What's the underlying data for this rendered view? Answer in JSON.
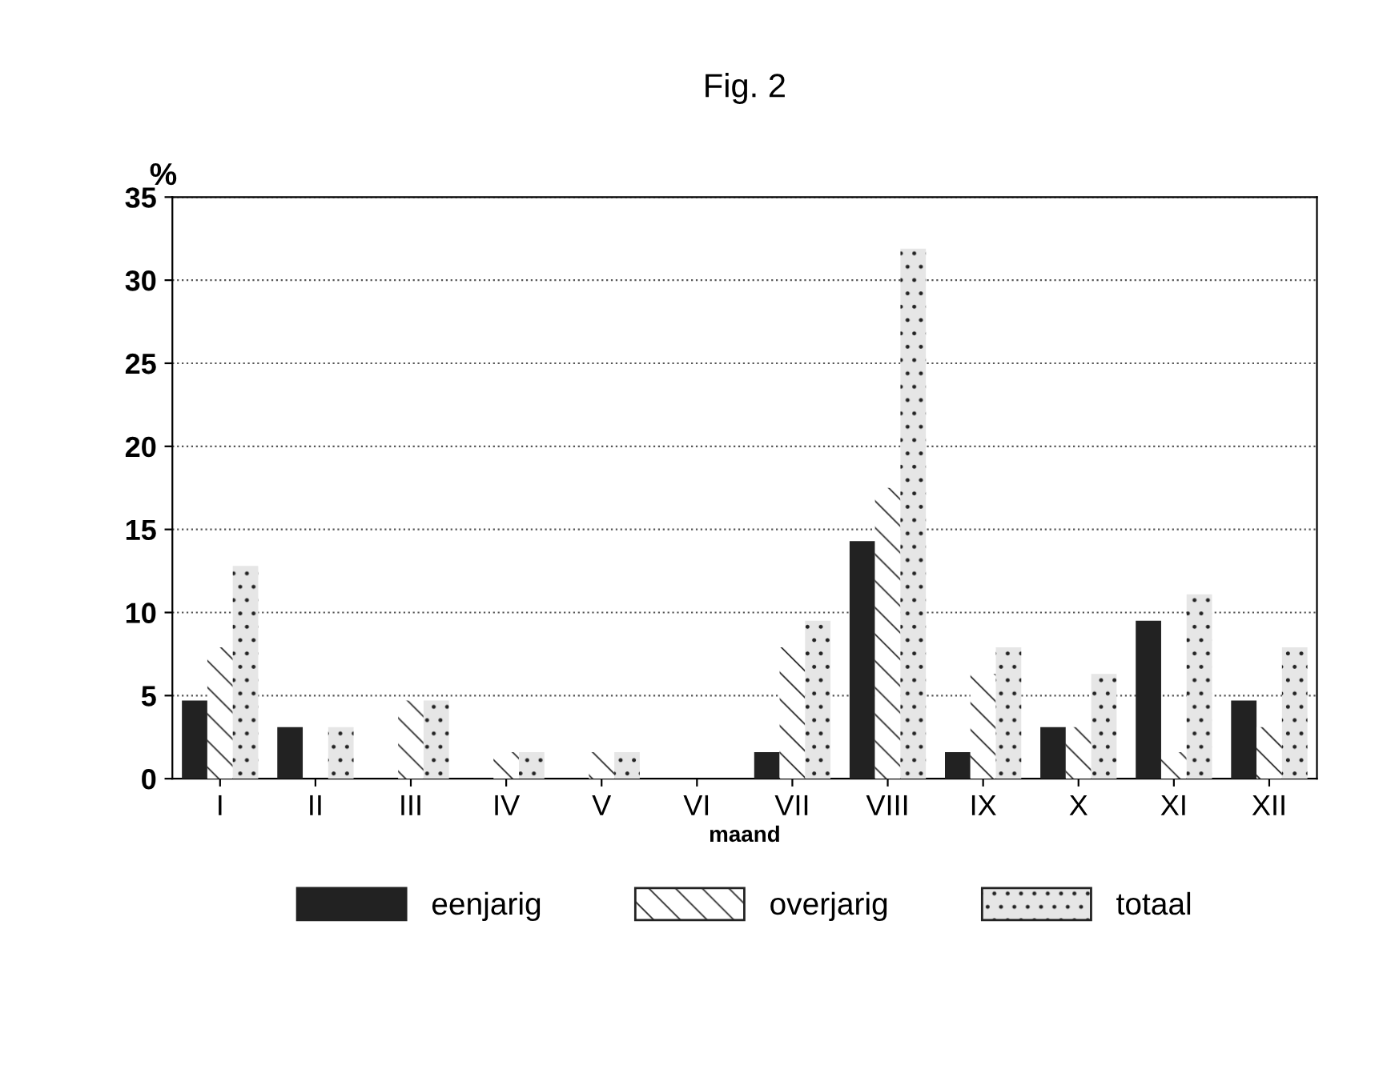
{
  "chart_data": {
    "type": "bar",
    "title": "Fig. 2",
    "xlabel": "maand",
    "ylabel": "%",
    "categories": [
      "I",
      "II",
      "III",
      "IV",
      "V",
      "VI",
      "VII",
      "VIII",
      "IX",
      "X",
      "XI",
      "XII"
    ],
    "series": [
      {
        "name": "eenjarig",
        "color": "#222222",
        "values": [
          4.7,
          3.1,
          0,
          0,
          0,
          0,
          1.6,
          14.3,
          1.6,
          3.1,
          9.5,
          4.7
        ]
      },
      {
        "name": "overjarig",
        "color": "#ffffff",
        "values": [
          7.9,
          0,
          4.7,
          1.6,
          1.6,
          0,
          7.9,
          17.5,
          6.3,
          3.1,
          1.6,
          3.1
        ]
      },
      {
        "name": "totaal",
        "color": "#e6e6e6",
        "values": [
          12.8,
          3.1,
          4.7,
          1.6,
          1.6,
          0,
          9.5,
          31.9,
          7.9,
          6.3,
          11.1,
          7.9
        ]
      }
    ],
    "ylim": [
      0,
      35
    ],
    "yticks": [
      0,
      5,
      10,
      15,
      20,
      25,
      30,
      35
    ],
    "grid": "y",
    "legend": "bottom"
  }
}
